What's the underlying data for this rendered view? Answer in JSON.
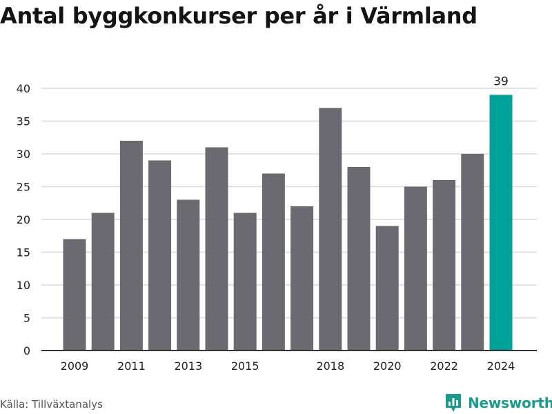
{
  "title": "Antal byggkonkurser per år i Värmland",
  "source": "Källa: Tillväxtanalys",
  "brand": {
    "name": "Newsworthy",
    "icon": "newsworthy-logo-icon"
  },
  "colors": {
    "bar": "#6b6a70",
    "highlight": "#00a196",
    "grid": "#d9d9d9",
    "axis": "#333333"
  },
  "chart_data": {
    "type": "bar",
    "categories": [
      "2009",
      "2010",
      "2011",
      "2012",
      "2013",
      "2014",
      "2015",
      "2016",
      "2017",
      "2018",
      "2019",
      "2020",
      "2021",
      "2022",
      "2023",
      "2024"
    ],
    "values": [
      17,
      21,
      32,
      29,
      23,
      31,
      21,
      27,
      22,
      37,
      28,
      19,
      25,
      26,
      30,
      39
    ],
    "x_tick_labels": [
      "2009",
      "2011",
      "2013",
      "2015",
      "2018",
      "2020",
      "2022",
      "2024"
    ],
    "ylim": [
      0,
      40
    ],
    "y_ticks": [
      0,
      5,
      10,
      15,
      20,
      25,
      30,
      35,
      40
    ],
    "highlight_category": "2024",
    "data_labels": [
      {
        "category": "2024",
        "text": "39"
      }
    ],
    "title": "Antal byggkonkurser per år i Värmland",
    "xlabel": "",
    "ylabel": "",
    "grid": true
  }
}
